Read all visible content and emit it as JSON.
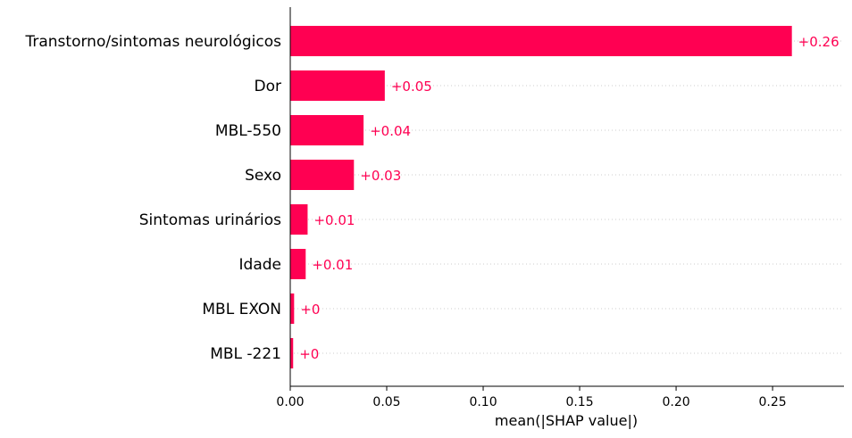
{
  "chart_data": {
    "type": "bar",
    "orientation": "horizontal",
    "categories": [
      "Transtorno/sintomas neurológicos",
      "Dor",
      "MBL-550",
      "Sexo",
      "Sintomas urinários",
      "Idade",
      "MBL EXON",
      "MBL -221"
    ],
    "values": [
      0.26,
      0.049,
      0.038,
      0.033,
      0.009,
      0.008,
      0.002,
      0.0015
    ],
    "value_labels": [
      "+0.26",
      "+0.05",
      "+0.04",
      "+0.03",
      "+0.01",
      "+0.01",
      "+0",
      "+0"
    ],
    "xlabel": "mean(|SHAP value|)",
    "ylabel": "",
    "title": "",
    "xlim": [
      0,
      0.287
    ],
    "xticks": [
      0.0,
      0.05,
      0.1,
      0.15,
      0.2,
      0.25
    ],
    "xtick_labels": [
      "0.00",
      "0.05",
      "0.10",
      "0.15",
      "0.20",
      "0.25"
    ],
    "grid": "dotted horizontal row guides",
    "legend": "none",
    "colors": {
      "bar": "#ff0052",
      "value_text": "#ff0052",
      "axis": "#000000",
      "guide": "#cccccc"
    }
  }
}
